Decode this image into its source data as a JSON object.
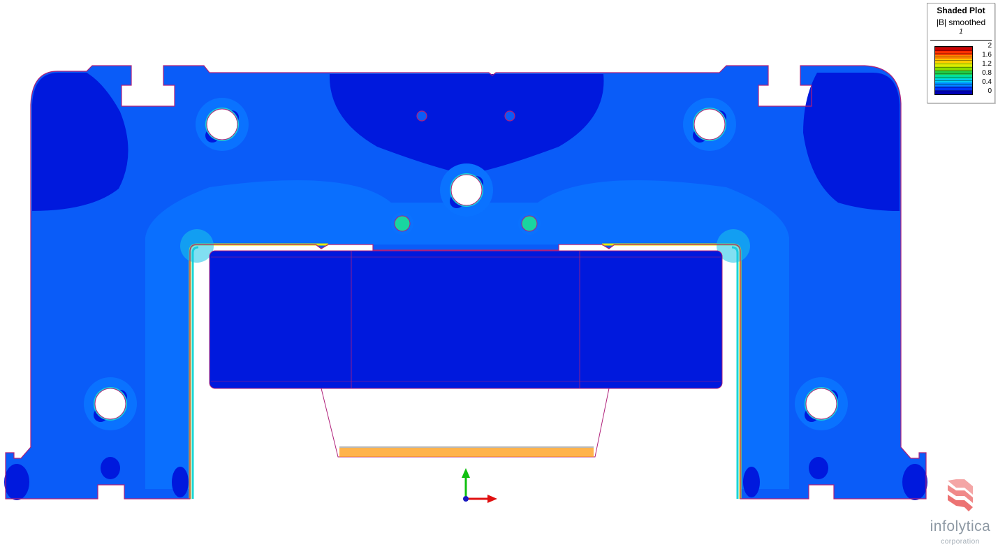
{
  "legend": {
    "title": "Shaded Plot",
    "quantity": "|B| smoothed",
    "step": "1",
    "ticks": [
      "2",
      "1.6",
      "1.2",
      "0.8",
      "0.4",
      "0"
    ],
    "colors": [
      "#0000b4",
      "#0033ff",
      "#0088ff",
      "#00ccee",
      "#00e0a0",
      "#22cc44",
      "#88dd00",
      "#ddee00",
      "#ffcc00",
      "#ff8800",
      "#ff3300",
      "#cc0000"
    ]
  },
  "logo": {
    "name": "infolytica",
    "subtitle": "corporation"
  },
  "palette": {
    "deep_blue": "#0019dd",
    "mid_blue": "#0a4ff5",
    "light_blue": "#0a6aff",
    "cyan": "#19d6d6",
    "green": "#2ccb4a",
    "yellow": "#e8e800",
    "orange": "#ff8800",
    "outline": "#b0207a",
    "axis_x": "#e01010",
    "axis_y": "#10c010"
  }
}
